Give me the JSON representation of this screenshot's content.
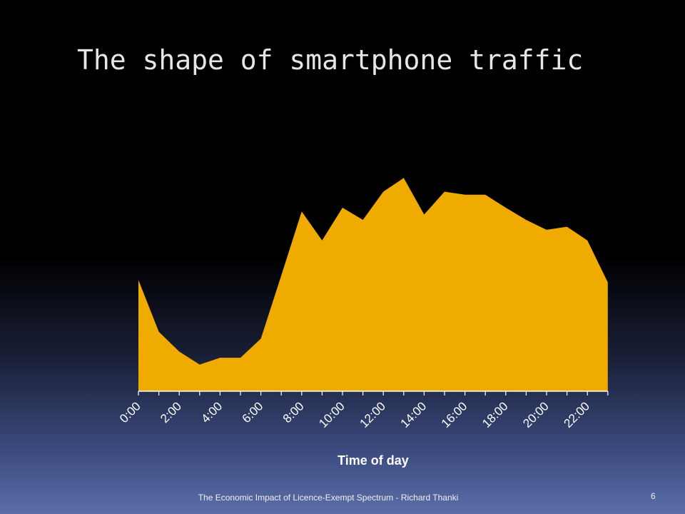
{
  "slide": {
    "title": "The shape of smartphone traffic",
    "footer": "The Economic Impact of Licence-Exempt Spectrum - Richard Thanki",
    "page_number": "6"
  },
  "colors": {
    "area_fill": "#F0AB00",
    "axis": "#FFFFFF",
    "title_text": "#E6E6E6"
  },
  "chart_data": {
    "type": "area",
    "title": "",
    "xlabel": "Time of day",
    "ylabel": "",
    "x_tick_labels": [
      "0:00",
      "2:00",
      "4:00",
      "6:00",
      "8:00",
      "10:00",
      "12:00",
      "14:00",
      "16:00",
      "18:00",
      "20:00",
      "22:00"
    ],
    "x": [
      "0:00",
      "1:00",
      "2:00",
      "3:00",
      "4:00",
      "5:00",
      "6:00",
      "7:00",
      "8:00",
      "9:00",
      "10:00",
      "11:00",
      "12:00",
      "13:00",
      "14:00",
      "15:00",
      "16:00",
      "17:00",
      "18:00",
      "19:00",
      "20:00",
      "21:00",
      "22:00",
      "23:00"
    ],
    "values": [
      146,
      78,
      52,
      35,
      44,
      44,
      69,
      152,
      236,
      198,
      241,
      225,
      262,
      280,
      232,
      262,
      258,
      258,
      241,
      225,
      212,
      216,
      198,
      143
    ],
    "ylim": [
      0,
      300
    ],
    "grid": false,
    "legend": "none"
  }
}
